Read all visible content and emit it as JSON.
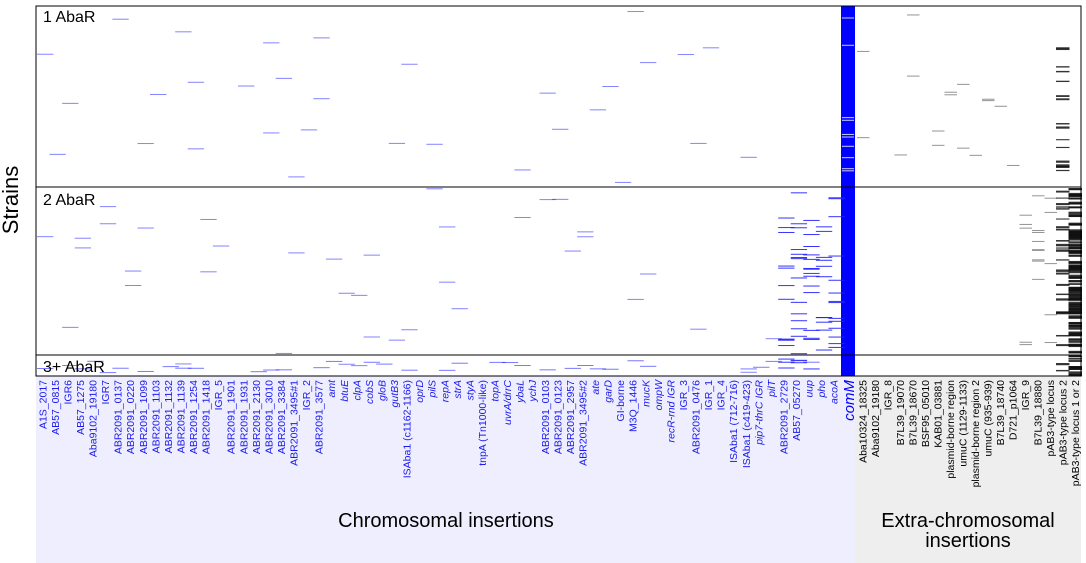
{
  "chart_data": {
    "type": "heatmap",
    "ylabel": "Strains",
    "groups": [
      {
        "label": "1 AbaR"
      },
      {
        "label": "2 AbaR"
      },
      {
        "label": "3+ AbaR"
      }
    ],
    "sections": [
      {
        "label": "Chromosomal insertions"
      },
      {
        "label": "Extra-chromosomal\ninsertions"
      }
    ],
    "highlight_column": "comM",
    "colors": {
      "chromosomal": "#1f1fff",
      "comM": "#0000ff",
      "extra": "#111111",
      "chromosomal_band": "#eeeeff",
      "extra_band": "#eeeeee"
    },
    "chromosomal_loci": [
      {
        "name": "A1S_2017",
        "italic": false
      },
      {
        "name": "AB57_0815",
        "italic": false
      },
      {
        "name": "IGR6",
        "italic": false
      },
      {
        "name": "AB57_1275",
        "italic": false
      },
      {
        "name": "Aba9102_19180",
        "italic": false
      },
      {
        "name": "IGR7",
        "italic": false
      },
      {
        "name": "ABR2091_0137",
        "italic": false
      },
      {
        "name": "ABR2091_0220",
        "italic": false
      },
      {
        "name": "ABR2091_1099",
        "italic": false
      },
      {
        "name": "ABR2091_1103",
        "italic": false
      },
      {
        "name": "ABR2091_1132",
        "italic": false
      },
      {
        "name": "ABR2091_1139",
        "italic": false
      },
      {
        "name": "ABR2091_1254",
        "italic": false
      },
      {
        "name": "ABR2091_1418",
        "italic": false
      },
      {
        "name": "IGR_5",
        "italic": false
      },
      {
        "name": "ABR2091_1901",
        "italic": false
      },
      {
        "name": "ABR2091_1931",
        "italic": false
      },
      {
        "name": "ABR2091_2130",
        "italic": false
      },
      {
        "name": "ABR2091_3010",
        "italic": false
      },
      {
        "name": "ABR2091_3384",
        "italic": false
      },
      {
        "name": "ABR2091_3495#1",
        "italic": false
      },
      {
        "name": "IGR_2",
        "italic": false
      },
      {
        "name": "ABR2091_3577",
        "italic": false
      },
      {
        "name": "amt",
        "italic": true
      },
      {
        "name": "btuE",
        "italic": true
      },
      {
        "name": "clpA",
        "italic": true
      },
      {
        "name": "cobS",
        "italic": true
      },
      {
        "name": "gloB",
        "italic": true
      },
      {
        "name": "gutB3",
        "italic": true
      },
      {
        "name": "ISAba1 (c1162-1166)",
        "italic": false
      },
      {
        "name": "oprD",
        "italic": true
      },
      {
        "name": "pilS",
        "italic": true
      },
      {
        "name": "repA",
        "italic": true
      },
      {
        "name": "strA",
        "italic": true
      },
      {
        "name": "styA",
        "italic": true
      },
      {
        "name": "tnpA (Tn1000-like)",
        "italic": false
      },
      {
        "name": "topA",
        "italic": true
      },
      {
        "name": "uvrA/drrC",
        "italic": true
      },
      {
        "name": "ybaL",
        "italic": true
      },
      {
        "name": "ychJ",
        "italic": true
      },
      {
        "name": "ABR2091_0103",
        "italic": false
      },
      {
        "name": "ABR2091_0123",
        "italic": false
      },
      {
        "name": "ABR2091_2957",
        "italic": false
      },
      {
        "name": "ABR2091_3495#2",
        "italic": false
      },
      {
        "name": "ate",
        "italic": true
      },
      {
        "name": "garD",
        "italic": true
      },
      {
        "name": "GI-borne",
        "italic": false
      },
      {
        "name": "M3Q_1446",
        "italic": false
      },
      {
        "name": "mucK",
        "italic": true
      },
      {
        "name": "ompW",
        "italic": true
      },
      {
        "name": "recR-rnd IGR",
        "italic": true
      },
      {
        "name": "IGR_3",
        "italic": false
      },
      {
        "name": "ABR2091_0476",
        "italic": false
      },
      {
        "name": "IGR_1",
        "italic": false
      },
      {
        "name": "IGR_4",
        "italic": false
      },
      {
        "name": "ISAba1 (712-716)",
        "italic": false
      },
      {
        "name": "ISAba1 (c419-423)",
        "italic": false
      },
      {
        "name": "pip7-thrC IGR",
        "italic": true
      },
      {
        "name": "pilT",
        "italic": true
      },
      {
        "name": "ABR2091_2729",
        "italic": false
      },
      {
        "name": "AB57_05270",
        "italic": false
      },
      {
        "name": "uup",
        "italic": true
      },
      {
        "name": "pho",
        "italic": true
      },
      {
        "name": "acoA",
        "italic": true
      }
    ],
    "comM_label": "comM",
    "extra_loci": [
      {
        "name": "Aba10324_18325",
        "italic": false
      },
      {
        "name": "Aba9102_19180",
        "italic": false
      },
      {
        "name": "IGR_8",
        "italic": false
      },
      {
        "name": "B7L39_19070",
        "italic": false
      },
      {
        "name": "B7L39_18670",
        "italic": false
      },
      {
        "name": "BSF95_05010",
        "italic": false
      },
      {
        "name": "KAB01_03881",
        "italic": false
      },
      {
        "name": "plasmid-borne region",
        "italic": false
      },
      {
        "name": "umuC (1129-1133)",
        "italic": false
      },
      {
        "name": "plasmid-borne region 2",
        "italic": false
      },
      {
        "name": "umuC (935-939)",
        "italic": false
      },
      {
        "name": "B7L39_18740",
        "italic": false
      },
      {
        "name": "D721_p1064",
        "italic": false
      },
      {
        "name": "IGR_9",
        "italic": false
      },
      {
        "name": "B7L39_18880",
        "italic": false
      },
      {
        "name": "pAB3-type locus",
        "italic": false
      },
      {
        "name": "pAB3-type locus 2",
        "italic": false
      },
      {
        "name": "pAB3-type locus 1 or 2",
        "italic": false
      }
    ]
  }
}
